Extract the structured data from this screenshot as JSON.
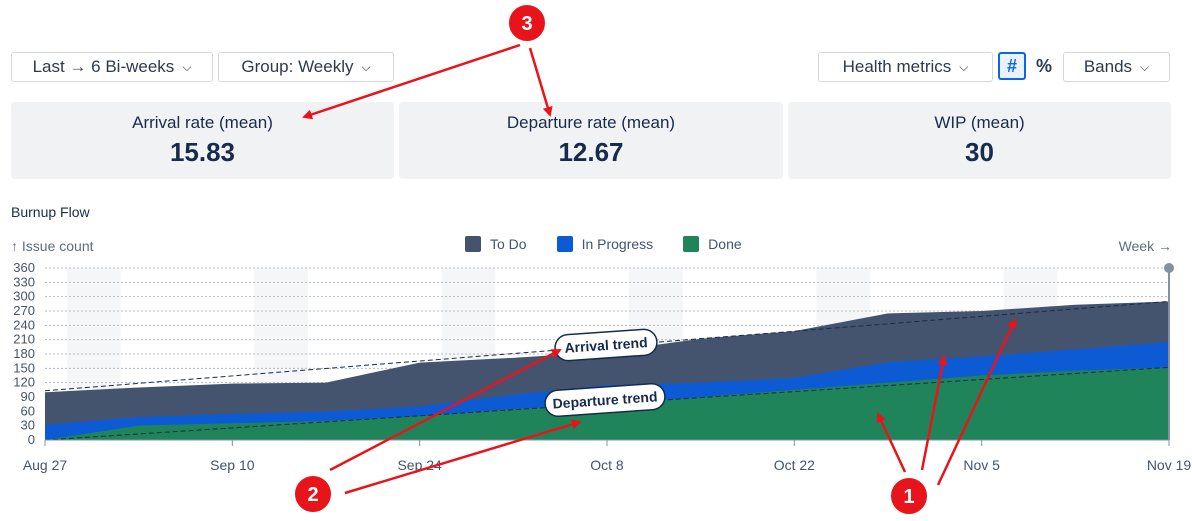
{
  "toolbar": {
    "range_label": "Last → 6 Bi-weeks",
    "group_label": "Group: Weekly",
    "health_label": "Health metrics",
    "count_toggle": "#",
    "percent_toggle": "%",
    "bands_label": "Bands"
  },
  "metrics": [
    {
      "label": "Arrival rate (mean)",
      "value": "15.83"
    },
    {
      "label": "Departure rate (mean)",
      "value": "12.67"
    },
    {
      "label": "WIP (mean)",
      "value": "30"
    }
  ],
  "section_title": "Burnup Flow",
  "colors": {
    "todo": "#44546f",
    "in_progress": "#0c5bd5",
    "done": "#1f845a",
    "annotation": "#e8141b"
  },
  "chart_data": {
    "type": "area",
    "stacked": true,
    "ylabel": "↑ Issue count",
    "xlabel": "Week →",
    "ylim": [
      0,
      360
    ],
    "y_ticks": [
      0,
      30,
      60,
      90,
      120,
      150,
      180,
      210,
      240,
      270,
      300,
      330,
      360
    ],
    "x_tick_labels": [
      "Aug 27",
      "Sep 10",
      "Sep 24",
      "Oct 8",
      "Oct 22",
      "Nov 5",
      "Nov 19"
    ],
    "x_weeks": [
      "Aug 27",
      "Sep 3",
      "Sep 10",
      "Sep 17",
      "Sep 24",
      "Oct 1",
      "Oct 8",
      "Oct 15",
      "Oct 22",
      "Oct 29",
      "Nov 5",
      "Nov 12",
      "Nov 19"
    ],
    "series": [
      {
        "name": "Done",
        "color": "#1f845a",
        "values": [
          0,
          30,
          35,
          40,
          50,
          65,
          75,
          90,
          105,
          120,
          135,
          145,
          152
        ]
      },
      {
        "name": "In Progress",
        "color": "#0c5bd5",
        "values": [
          32,
          48,
          55,
          60,
          70,
          95,
          115,
          120,
          130,
          163,
          175,
          190,
          205
        ]
      },
      {
        "name": "To Do",
        "color": "#44546f",
        "values": [
          100,
          110,
          118,
          120,
          162,
          172,
          185,
          212,
          228,
          265,
          270,
          283,
          290
        ]
      }
    ],
    "trends": [
      {
        "label": "Arrival trend",
        "start": 103,
        "end": 290
      },
      {
        "label": "Departure trend",
        "start": 0,
        "end": 152
      }
    ]
  },
  "annotations": [
    "1",
    "2",
    "3"
  ]
}
